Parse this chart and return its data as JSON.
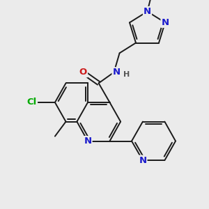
{
  "bg_color": "#ebebeb",
  "bond_color": "#1a1a1a",
  "bond_width": 1.4,
  "atom_colors": {
    "C": "#1a1a1a",
    "N": "#1a1acc",
    "O": "#cc1a1a",
    "Cl": "#00aa00",
    "H": "#555555"
  },
  "font_size": 9.5,
  "fig_width": 3.0,
  "fig_height": 3.0,
  "dpi": 100
}
